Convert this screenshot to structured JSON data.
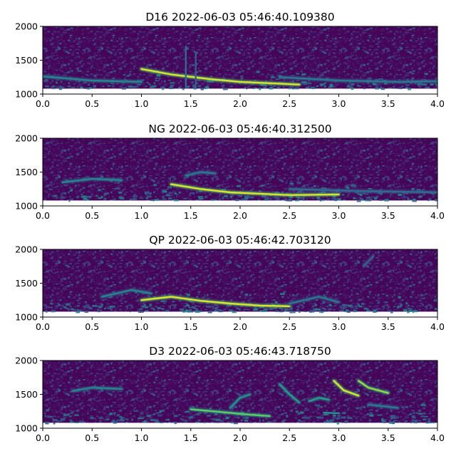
{
  "chart_data": [
    {
      "type": "heatmap",
      "title": "D16 2022-06-03 05:46:40.109380",
      "xlabel": "",
      "ylabel": "",
      "xlim": [
        0.0,
        4.0
      ],
      "ylim": [
        1000,
        2000
      ],
      "x_ticks": [
        "0.0",
        "0.5",
        "1.0",
        "1.5",
        "2.0",
        "2.5",
        "3.0",
        "3.5",
        "4.0"
      ],
      "y_ticks": [
        "1000",
        "1500",
        "2000"
      ],
      "colormap": "viridis",
      "grid": false,
      "traces": [
        {
          "x": [
            1.0,
            1.3,
            1.7,
            2.0,
            2.3,
            2.6
          ],
          "y": [
            1370,
            1290,
            1220,
            1180,
            1160,
            1140
          ],
          "intensity": 0.95
        },
        {
          "x": [
            0.0,
            0.5,
            1.0
          ],
          "y": [
            1260,
            1200,
            1180
          ],
          "intensity": 0.45
        },
        {
          "x": [
            2.4,
            3.0,
            3.6,
            4.0
          ],
          "y": [
            1250,
            1200,
            1180,
            1190
          ],
          "intensity": 0.4
        },
        {
          "x": [
            1.45,
            1.45
          ],
          "y": [
            1100,
            1700
          ],
          "intensity": 0.35
        },
        {
          "x": [
            1.55,
            1.55
          ],
          "y": [
            1100,
            1600
          ],
          "intensity": 0.3
        }
      ]
    },
    {
      "type": "heatmap",
      "title": "NG 2022-06-03 05:46:40.312500",
      "xlabel": "",
      "ylabel": "",
      "xlim": [
        0.0,
        4.0
      ],
      "ylim": [
        1000,
        2000
      ],
      "x_ticks": [
        "0.0",
        "0.5",
        "1.0",
        "1.5",
        "2.0",
        "2.5",
        "3.0",
        "3.5",
        "4.0"
      ],
      "y_ticks": [
        "1000",
        "1500",
        "2000"
      ],
      "colormap": "viridis",
      "grid": false,
      "traces": [
        {
          "x": [
            1.3,
            1.6,
            1.9,
            2.2,
            2.5,
            3.0
          ],
          "y": [
            1320,
            1250,
            1200,
            1180,
            1160,
            1170
          ],
          "intensity": 0.95
        },
        {
          "x": [
            0.2,
            0.5,
            0.8
          ],
          "y": [
            1350,
            1400,
            1380
          ],
          "intensity": 0.45
        },
        {
          "x": [
            1.45,
            1.6,
            1.75
          ],
          "y": [
            1450,
            1500,
            1480
          ],
          "intensity": 0.4
        },
        {
          "x": [
            2.5,
            3.2,
            4.0
          ],
          "y": [
            1250,
            1220,
            1200
          ],
          "intensity": 0.35
        }
      ]
    },
    {
      "type": "heatmap",
      "title": "QP 2022-06-03 05:46:42.703120",
      "xlabel": "",
      "ylabel": "",
      "xlim": [
        0.0,
        4.0
      ],
      "ylim": [
        1000,
        2000
      ],
      "x_ticks": [
        "0.0",
        "0.5",
        "1.0",
        "1.5",
        "2.0",
        "2.5",
        "3.0",
        "3.5",
        "4.0"
      ],
      "y_ticks": [
        "1000",
        "1500",
        "2000"
      ],
      "colormap": "viridis",
      "grid": false,
      "traces": [
        {
          "x": [
            1.0,
            1.3,
            1.6,
            1.9,
            2.2,
            2.5
          ],
          "y": [
            1250,
            1300,
            1240,
            1200,
            1170,
            1160
          ],
          "intensity": 0.95
        },
        {
          "x": [
            0.6,
            0.9,
            1.1
          ],
          "y": [
            1300,
            1400,
            1350
          ],
          "intensity": 0.45
        },
        {
          "x": [
            2.5,
            2.8,
            3.0
          ],
          "y": [
            1200,
            1300,
            1220
          ],
          "intensity": 0.4
        },
        {
          "x": [
            3.25,
            3.35
          ],
          "y": [
            1750,
            1900
          ],
          "intensity": 0.3
        }
      ]
    },
    {
      "type": "heatmap",
      "title": "D3 2022-06-03 05:46:43.718750",
      "xlabel": "",
      "ylabel": "",
      "xlim": [
        0.0,
        4.0
      ],
      "ylim": [
        1000,
        2000
      ],
      "x_ticks": [
        "0.0",
        "0.5",
        "1.0",
        "1.5",
        "2.0",
        "2.5",
        "3.0",
        "3.5",
        "4.0"
      ],
      "y_ticks": [
        "1000",
        "1500",
        "2000"
      ],
      "colormap": "viridis",
      "grid": false,
      "traces": [
        {
          "x": [
            1.5,
            1.8,
            2.1,
            2.3
          ],
          "y": [
            1280,
            1240,
            1200,
            1180
          ],
          "intensity": 0.75
        },
        {
          "x": [
            0.3,
            0.5,
            0.8
          ],
          "y": [
            1550,
            1600,
            1580
          ],
          "intensity": 0.45
        },
        {
          "x": [
            1.9,
            2.0,
            2.1
          ],
          "y": [
            1300,
            1450,
            1500
          ],
          "intensity": 0.5
        },
        {
          "x": [
            2.4,
            2.5,
            2.6
          ],
          "y": [
            1650,
            1500,
            1380
          ],
          "intensity": 0.55
        },
        {
          "x": [
            2.7,
            2.8,
            2.9
          ],
          "y": [
            1400,
            1450,
            1420
          ],
          "intensity": 0.55
        },
        {
          "x": [
            2.95,
            3.05,
            3.2
          ],
          "y": [
            1700,
            1560,
            1480
          ],
          "intensity": 0.95
        },
        {
          "x": [
            3.2,
            3.3,
            3.5
          ],
          "y": [
            1700,
            1600,
            1520
          ],
          "intensity": 0.85
        },
        {
          "x": [
            2.85,
            3.0
          ],
          "y": [
            1230,
            1220
          ],
          "intensity": 0.5
        },
        {
          "x": [
            3.3,
            3.6
          ],
          "y": [
            1350,
            1300
          ],
          "intensity": 0.4
        }
      ]
    }
  ]
}
